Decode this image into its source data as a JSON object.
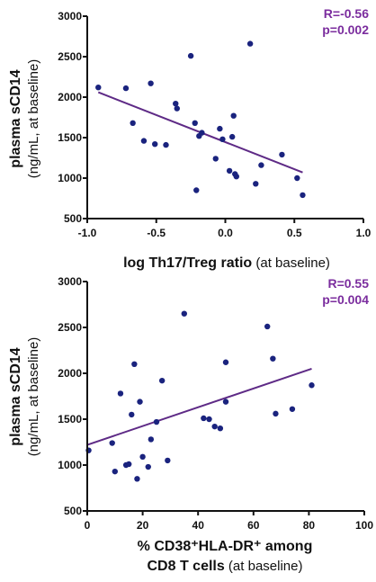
{
  "chart_data": [
    {
      "type": "scatter",
      "ylabel_bold": "plasma sCD14",
      "ylabel_normal": "(ng/mL, at baseline)",
      "xlabel_bold": "log Th17/Treg ratio",
      "xlabel_normal": " (at baseline)",
      "stats": {
        "r": "R=-0.56",
        "p": "p=0.002"
      },
      "xlim": [
        -1.0,
        1.0
      ],
      "ylim": [
        500,
        3000
      ],
      "xticks": [
        "-1.0",
        "-0.5",
        "0.0",
        "0.5",
        "1.0"
      ],
      "yticks": [
        "500",
        "1000",
        "1500",
        "2000",
        "2500",
        "3000"
      ],
      "xtick_values": [
        -1.0,
        -0.5,
        0.0,
        0.5,
        1.0
      ],
      "ytick_values": [
        500,
        1000,
        1500,
        2000,
        2500,
        3000
      ],
      "x": [
        -0.92,
        -0.72,
        -0.67,
        -0.59,
        -0.54,
        -0.51,
        -0.43,
        -0.36,
        -0.35,
        -0.25,
        -0.22,
        -0.21,
        -0.19,
        -0.17,
        -0.07,
        -0.04,
        -0.02,
        0.03,
        0.05,
        0.06,
        0.07,
        0.08,
        0.18,
        0.22,
        0.26,
        0.41,
        0.52,
        0.56
      ],
      "y": [
        2120,
        2110,
        1680,
        1460,
        2170,
        1420,
        1410,
        1920,
        1860,
        2510,
        1680,
        850,
        1520,
        1560,
        1240,
        1610,
        1480,
        1090,
        1510,
        1770,
        1050,
        1020,
        2660,
        930,
        1160,
        1290,
        1000,
        790
      ],
      "trend": {
        "x": [
          -0.92,
          0.56
        ],
        "y": [
          2060,
          1070
        ]
      },
      "point_color": "#1a237e",
      "line_color": "#5e2a86"
    },
    {
      "type": "scatter",
      "ylabel_bold": "plasma sCD14",
      "ylabel_normal": "(ng/mL, at baseline)",
      "xlabel_line1": "% CD38⁺HLA-DR⁺ among",
      "xlabel_line2_bold": "CD8 T cells",
      "xlabel_line2_normal": " (at baseline)",
      "stats": {
        "r": "R=0.55",
        "p": "p=0.004"
      },
      "xlim": [
        0,
        100
      ],
      "ylim": [
        500,
        3000
      ],
      "xticks": [
        "0",
        "20",
        "40",
        "60",
        "80",
        "100"
      ],
      "yticks": [
        "500",
        "1000",
        "1500",
        "2000",
        "2500",
        "3000"
      ],
      "xtick_values": [
        0,
        20,
        40,
        60,
        80,
        100
      ],
      "ytick_values": [
        500,
        1000,
        1500,
        2000,
        2500,
        3000
      ],
      "x": [
        0.5,
        9,
        10,
        12,
        14,
        15,
        16,
        17,
        18,
        19,
        20,
        22,
        23,
        25,
        27,
        29,
        35,
        42,
        44,
        46,
        48,
        50,
        50,
        65,
        67,
        68,
        74,
        81
      ],
      "y": [
        1160,
        1240,
        930,
        1780,
        1000,
        1010,
        1550,
        2100,
        850,
        1690,
        1090,
        980,
        1280,
        1470,
        1920,
        1050,
        2650,
        1510,
        1500,
        1420,
        1400,
        2120,
        1690,
        2510,
        2160,
        1560,
        1610,
        1870
      ],
      "trend": {
        "x": [
          0,
          81
        ],
        "y": [
          1220,
          2050
        ]
      },
      "point_color": "#1a237e",
      "line_color": "#5e2a86"
    }
  ]
}
